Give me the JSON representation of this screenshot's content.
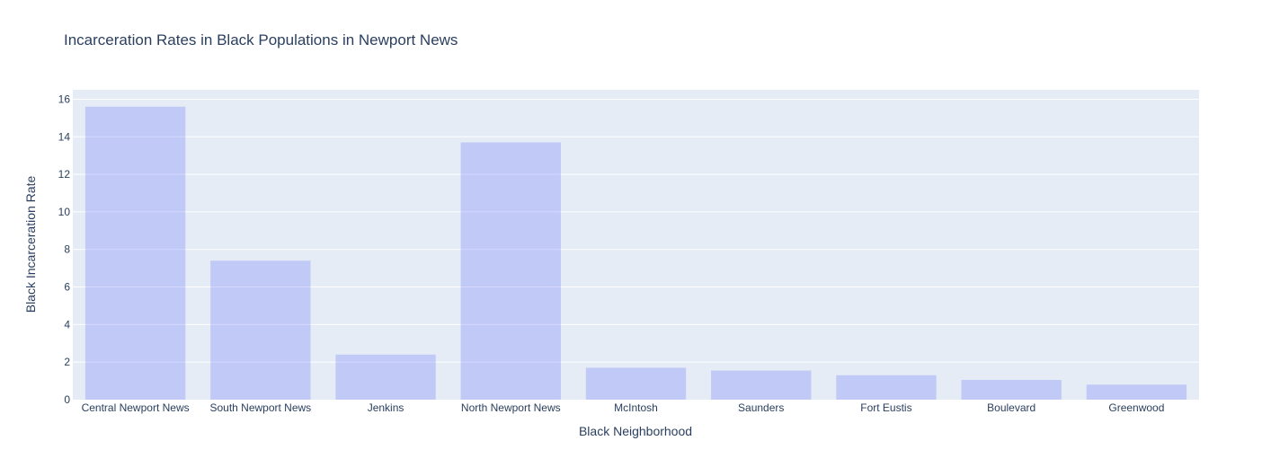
{
  "chart_data": {
    "type": "bar",
    "title": "Incarceration Rates in Black Populations in Newport News",
    "xlabel": "Black Neighborhood",
    "ylabel": "Black Incarceration Rate",
    "categories": [
      "Central Newport News",
      "South Newport News",
      "Jenkins",
      "North Newport News",
      "McIntosh",
      "Saunders",
      "Fort Eustis",
      "Boulevard",
      "Greenwood"
    ],
    "values": [
      15.6,
      7.4,
      2.4,
      13.7,
      1.7,
      1.55,
      1.3,
      1.05,
      0.8
    ],
    "ylim": [
      0,
      16.5
    ],
    "yticks": [
      0,
      2,
      4,
      6,
      8,
      10,
      12,
      14,
      16
    ],
    "grid": true,
    "colors": {
      "bar": "#636efa",
      "plot_bg": "#e5ecf6",
      "grid": "#ffffff",
      "text": "#2a3f5f"
    }
  }
}
